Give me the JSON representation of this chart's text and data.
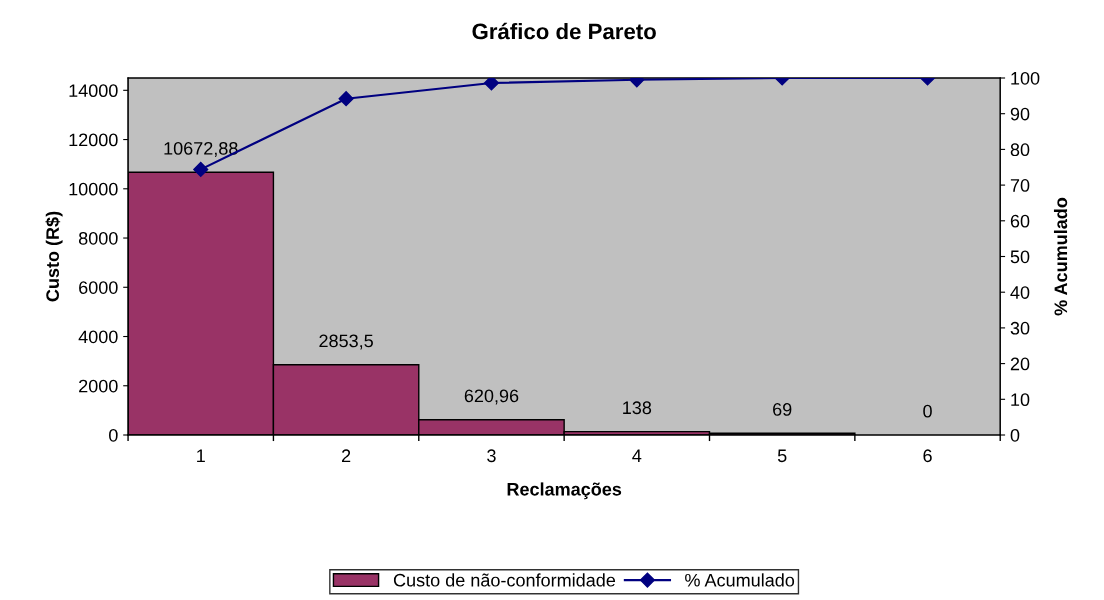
{
  "chart_data": {
    "type": "bar",
    "title": "Gráfico de Pareto",
    "xlabel": "Reclamações",
    "ylabel": "Custo (R$)",
    "y2label": "% Acumulado",
    "categories": [
      "1",
      "2",
      "3",
      "4",
      "5",
      "6"
    ],
    "series": [
      {
        "name": "Custo de não-conformidade",
        "color": "#993366",
        "values": [
          10672.88,
          2853.5,
          620.96,
          138,
          69,
          0
        ],
        "value_labels": [
          "10672,88",
          "2853,5",
          "620,96",
          "138",
          "69",
          "0"
        ]
      },
      {
        "name": "% Acumulado",
        "type": "line",
        "axis": "y2",
        "color": "#000080",
        "marker": "diamond",
        "values": [
          74.4,
          94.2,
          98.6,
          99.5,
          100,
          100
        ]
      }
    ],
    "ylim": [
      0,
      14500
    ],
    "yticks": [
      0,
      2000,
      4000,
      6000,
      8000,
      10000,
      12000,
      14000
    ],
    "y2lim": [
      0,
      100
    ],
    "y2ticks": [
      0,
      10,
      20,
      30,
      40,
      50,
      60,
      70,
      80,
      90,
      100
    ],
    "grid": false,
    "legend": "bottom"
  }
}
